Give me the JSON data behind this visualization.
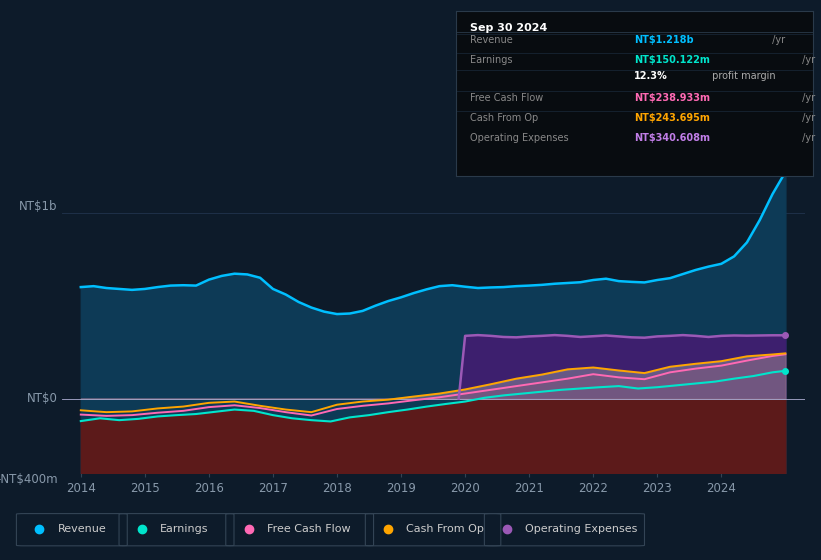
{
  "background_color": "#0d1b2a",
  "revenue_color": "#00bfff",
  "earnings_color": "#00e5cc",
  "free_cash_flow_color": "#ff69b4",
  "cash_from_op_color": "#ffa500",
  "operating_expenses_color": "#9b59b6",
  "revenue_fill_color": "#0d3a56",
  "earnings_fill_neg_color": "#5c1a1a",
  "operating_expenses_fill_color": "#3d1f6e",
  "cash_from_op_fill_color": "#888899",
  "free_cash_flow_fill_color": "#885577",
  "ylim": [
    -400,
    1300
  ],
  "xlim_start": 2013.7,
  "xlim_end": 2025.3,
  "xticks": [
    2014,
    2015,
    2016,
    2017,
    2018,
    2019,
    2020,
    2021,
    2022,
    2023,
    2024
  ],
  "ylabel_top": "NT$1b",
  "ylabel_zero": "NT$0",
  "ylabel_neg": "-NT$400m",
  "ytick_vals": [
    1000,
    0,
    -400
  ],
  "grid_color": "#1e3048",
  "zero_line_color": "#aaaacc",
  "info_box": {
    "title": "Sep 30 2024",
    "rows": [
      {
        "label": "Revenue",
        "value": "NT$1.218b",
        "suffix": " /yr",
        "value_color": "#00bfff"
      },
      {
        "label": "Earnings",
        "value": "NT$150.122m",
        "suffix": " /yr",
        "value_color": "#00e5cc"
      },
      {
        "label": "",
        "value": "12.3%",
        "suffix": " profit margin",
        "value_color": "#ffffff",
        "suffix_color": "#aaaaaa"
      },
      {
        "label": "Free Cash Flow",
        "value": "NT$238.933m",
        "suffix": " /yr",
        "value_color": "#ff69b4"
      },
      {
        "label": "Cash From Op",
        "value": "NT$243.695m",
        "suffix": " /yr",
        "value_color": "#ffa500"
      },
      {
        "label": "Operating Expenses",
        "value": "NT$340.608m",
        "suffix": " /yr",
        "value_color": "#c17ee8"
      }
    ]
  },
  "legend_items": [
    {
      "label": "Revenue",
      "color": "#00bfff"
    },
    {
      "label": "Earnings",
      "color": "#00e5cc"
    },
    {
      "label": "Free Cash Flow",
      "color": "#ff69b4"
    },
    {
      "label": "Cash From Op",
      "color": "#ffa500"
    },
    {
      "label": "Operating Expenses",
      "color": "#9b59b6"
    }
  ],
  "revenue_x": [
    2014.0,
    2014.2,
    2014.4,
    2014.6,
    2014.8,
    2015.0,
    2015.2,
    2015.4,
    2015.6,
    2015.8,
    2016.0,
    2016.2,
    2016.4,
    2016.6,
    2016.8,
    2017.0,
    2017.2,
    2017.4,
    2017.6,
    2017.8,
    2018.0,
    2018.2,
    2018.4,
    2018.6,
    2018.8,
    2019.0,
    2019.2,
    2019.4,
    2019.6,
    2019.8,
    2020.0,
    2020.2,
    2020.4,
    2020.6,
    2020.8,
    2021.0,
    2021.2,
    2021.4,
    2021.6,
    2021.8,
    2022.0,
    2022.2,
    2022.4,
    2022.6,
    2022.8,
    2023.0,
    2023.2,
    2023.4,
    2023.6,
    2023.8,
    2024.0,
    2024.2,
    2024.4,
    2024.6,
    2024.8,
    2025.0
  ],
  "revenue_y": [
    600,
    605,
    595,
    590,
    585,
    590,
    600,
    608,
    610,
    608,
    640,
    660,
    672,
    668,
    650,
    590,
    560,
    520,
    490,
    468,
    455,
    458,
    472,
    500,
    525,
    545,
    568,
    588,
    605,
    610,
    602,
    595,
    598,
    600,
    605,
    608,
    612,
    618,
    622,
    626,
    638,
    645,
    632,
    628,
    625,
    638,
    648,
    670,
    692,
    710,
    725,
    765,
    840,
    960,
    1100,
    1218
  ],
  "earnings_x": [
    2014.0,
    2014.3,
    2014.6,
    2014.9,
    2015.2,
    2015.5,
    2015.8,
    2016.1,
    2016.4,
    2016.7,
    2017.0,
    2017.3,
    2017.6,
    2017.9,
    2018.2,
    2018.5,
    2018.8,
    2019.1,
    2019.4,
    2019.7,
    2020.0,
    2020.3,
    2020.6,
    2020.9,
    2021.2,
    2021.5,
    2021.8,
    2022.1,
    2022.4,
    2022.7,
    2023.0,
    2023.3,
    2023.6,
    2023.9,
    2024.2,
    2024.5,
    2024.8,
    2025.0
  ],
  "earnings_y": [
    -120,
    -105,
    -115,
    -108,
    -95,
    -88,
    -82,
    -70,
    -58,
    -65,
    -88,
    -105,
    -115,
    -122,
    -100,
    -88,
    -72,
    -58,
    -42,
    -28,
    -15,
    5,
    18,
    28,
    38,
    48,
    55,
    62,
    68,
    55,
    62,
    72,
    82,
    92,
    108,
    122,
    142,
    150
  ],
  "free_cash_flow_x": [
    2014.0,
    2014.4,
    2014.8,
    2015.2,
    2015.6,
    2016.0,
    2016.4,
    2016.8,
    2017.2,
    2017.6,
    2018.0,
    2018.4,
    2018.8,
    2019.2,
    2019.6,
    2020.0,
    2020.4,
    2020.8,
    2021.2,
    2021.6,
    2022.0,
    2022.4,
    2022.8,
    2023.2,
    2023.6,
    2024.0,
    2024.4,
    2024.8,
    2025.0
  ],
  "free_cash_flow_y": [
    -85,
    -92,
    -88,
    -75,
    -65,
    -45,
    -35,
    -50,
    -72,
    -90,
    -55,
    -38,
    -25,
    -8,
    8,
    28,
    48,
    68,
    88,
    108,
    132,
    115,
    105,
    142,
    162,
    178,
    205,
    230,
    239
  ],
  "cash_from_op_x": [
    2014.0,
    2014.4,
    2014.8,
    2015.2,
    2015.6,
    2016.0,
    2016.4,
    2016.8,
    2017.2,
    2017.6,
    2018.0,
    2018.4,
    2018.8,
    2019.2,
    2019.6,
    2020.0,
    2020.4,
    2020.8,
    2021.2,
    2021.6,
    2022.0,
    2022.4,
    2022.8,
    2023.2,
    2023.6,
    2024.0,
    2024.4,
    2024.8,
    2025.0
  ],
  "cash_from_op_y": [
    -62,
    -72,
    -68,
    -52,
    -42,
    -22,
    -15,
    -38,
    -58,
    -72,
    -32,
    -15,
    -5,
    12,
    28,
    50,
    78,
    108,
    130,
    158,
    168,
    152,
    138,
    172,
    188,
    202,
    228,
    238,
    244
  ],
  "operating_expenses_x": [
    2019.9,
    2020.0,
    2020.2,
    2020.4,
    2020.6,
    2020.8,
    2021.0,
    2021.2,
    2021.4,
    2021.6,
    2021.8,
    2022.0,
    2022.2,
    2022.4,
    2022.6,
    2022.8,
    2023.0,
    2023.2,
    2023.4,
    2023.6,
    2023.8,
    2024.0,
    2024.2,
    2024.4,
    2024.6,
    2024.8,
    2025.0
  ],
  "operating_expenses_y": [
    0,
    338,
    342,
    338,
    332,
    330,
    335,
    338,
    342,
    338,
    332,
    336,
    340,
    335,
    330,
    328,
    335,
    338,
    342,
    338,
    332,
    338,
    340,
    339,
    340,
    341,
    341
  ]
}
